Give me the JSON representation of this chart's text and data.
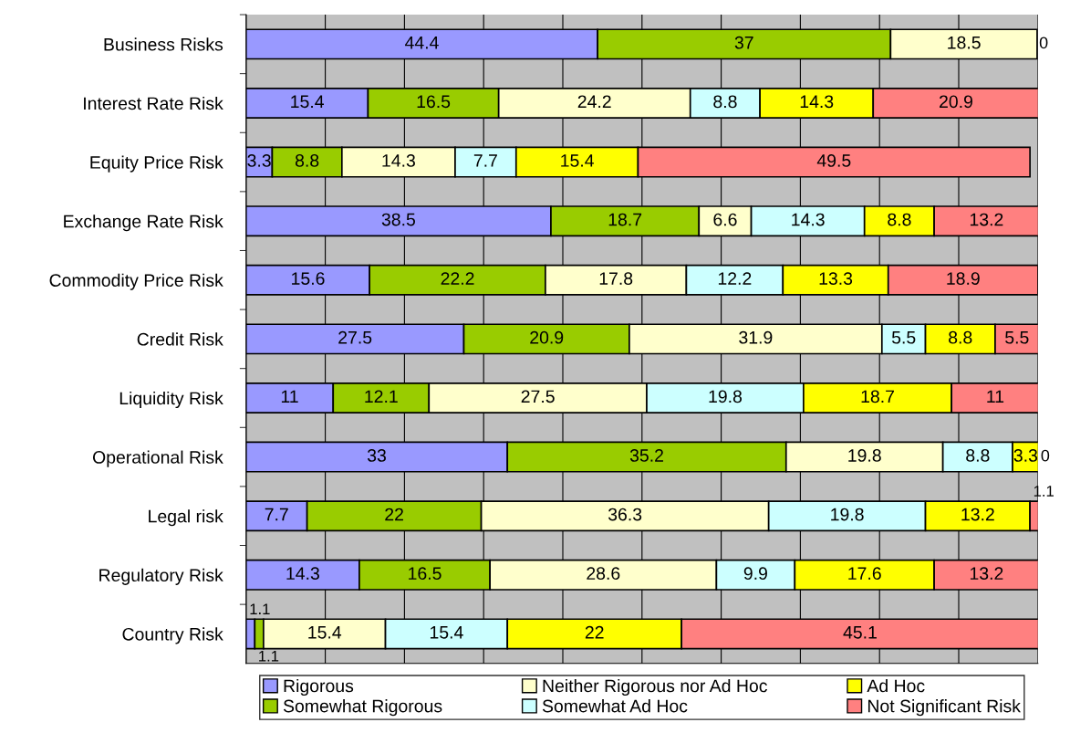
{
  "chart_data": {
    "type": "bar",
    "orientation": "horizontal",
    "stacked": true,
    "categories": [
      "Business Risks",
      "Interest Rate Risk",
      "Equity Price Risk",
      "Exchange Rate Risk",
      "Commodity Price Risk",
      "Credit Risk",
      "Liquidity Risk",
      "Operational Risk",
      "Legal risk",
      "Regulatory Risk",
      "Country Risk"
    ],
    "series": [
      {
        "name": "Rigorous",
        "color": "#9999ff",
        "values": [
          44.4,
          15.4,
          3.3,
          38.5,
          15.6,
          27.5,
          11,
          33,
          7.7,
          14.3,
          1.1
        ],
        "value_labels": [
          "44.4",
          "15.4",
          "3.3",
          "38.5",
          "15.6",
          "27.5",
          "11",
          "33",
          "7.7",
          "14.3",
          "1.1"
        ]
      },
      {
        "name": "Somewhat Rigorous",
        "color": "#99cc00",
        "values": [
          37,
          16.5,
          8.8,
          18.7,
          22.2,
          20.9,
          12.1,
          35.2,
          22,
          16.5,
          1.1
        ],
        "value_labels": [
          "37",
          "16.5",
          "8.8",
          "18.7",
          "22.2",
          "20.9",
          "12.1",
          "35.2",
          "22",
          "16.5",
          "1.1"
        ]
      },
      {
        "name": "Neither Rigorous nor Ad Hoc",
        "color": "#ffffcc",
        "values": [
          18.5,
          24.2,
          14.3,
          6.6,
          17.8,
          31.9,
          27.5,
          19.8,
          36.3,
          28.6,
          15.4
        ],
        "value_labels": [
          "18.5",
          "24.2",
          "14.3",
          "6.6",
          "17.8",
          "31.9",
          "27.5",
          "19.8",
          "36.3",
          "28.6",
          "15.4"
        ]
      },
      {
        "name": "Somewhat Ad Hoc",
        "color": "#ccffff",
        "values": [
          0,
          8.8,
          7.7,
          14.3,
          12.2,
          5.5,
          19.8,
          8.8,
          19.8,
          9.9,
          15.4
        ],
        "value_labels": [
          "0",
          "8.8",
          "7.7",
          "14.3",
          "12.2",
          "5.5",
          "19.8",
          "8.8",
          "19.8",
          "9.9",
          "15.4"
        ]
      },
      {
        "name": "Ad Hoc",
        "color": "#ffff00",
        "values": [
          0,
          14.3,
          15.4,
          8.8,
          13.3,
          8.8,
          18.7,
          3.3,
          13.2,
          17.6,
          22
        ],
        "value_labels": [
          null,
          "14.3",
          "15.4",
          "8.8",
          "13.3",
          "8.8",
          "18.7",
          "3.3",
          "13.2",
          "17.6",
          "22"
        ]
      },
      {
        "name": "Not Significant Risk",
        "color": "#ff8080",
        "values": [
          0,
          20.9,
          49.5,
          13.2,
          18.9,
          5.5,
          11,
          0,
          1.1,
          13.2,
          45.1
        ],
        "value_labels": [
          null,
          "20.9",
          "49.5",
          "13.2",
          "18.9",
          "5.5",
          "11",
          "0",
          "1.1",
          "13.2",
          "45.1"
        ]
      }
    ],
    "xlim": [
      0,
      100
    ],
    "xticks": [
      {
        "value": 0,
        "label": null
      },
      {
        "value": 10,
        "label": null
      },
      {
        "value": 20,
        "label": null
      },
      {
        "value": 30,
        "label": null
      },
      {
        "value": 40,
        "label": null
      },
      {
        "value": 50,
        "label": null
      },
      {
        "value": 60,
        "label": null
      },
      {
        "value": 70,
        "label": null
      },
      {
        "value": 80,
        "label": null
      },
      {
        "value": 90,
        "label": null
      },
      {
        "value": 100,
        "label": null
      }
    ],
    "tick_labels": "y",
    "grid": "x",
    "legend": "bottom"
  }
}
